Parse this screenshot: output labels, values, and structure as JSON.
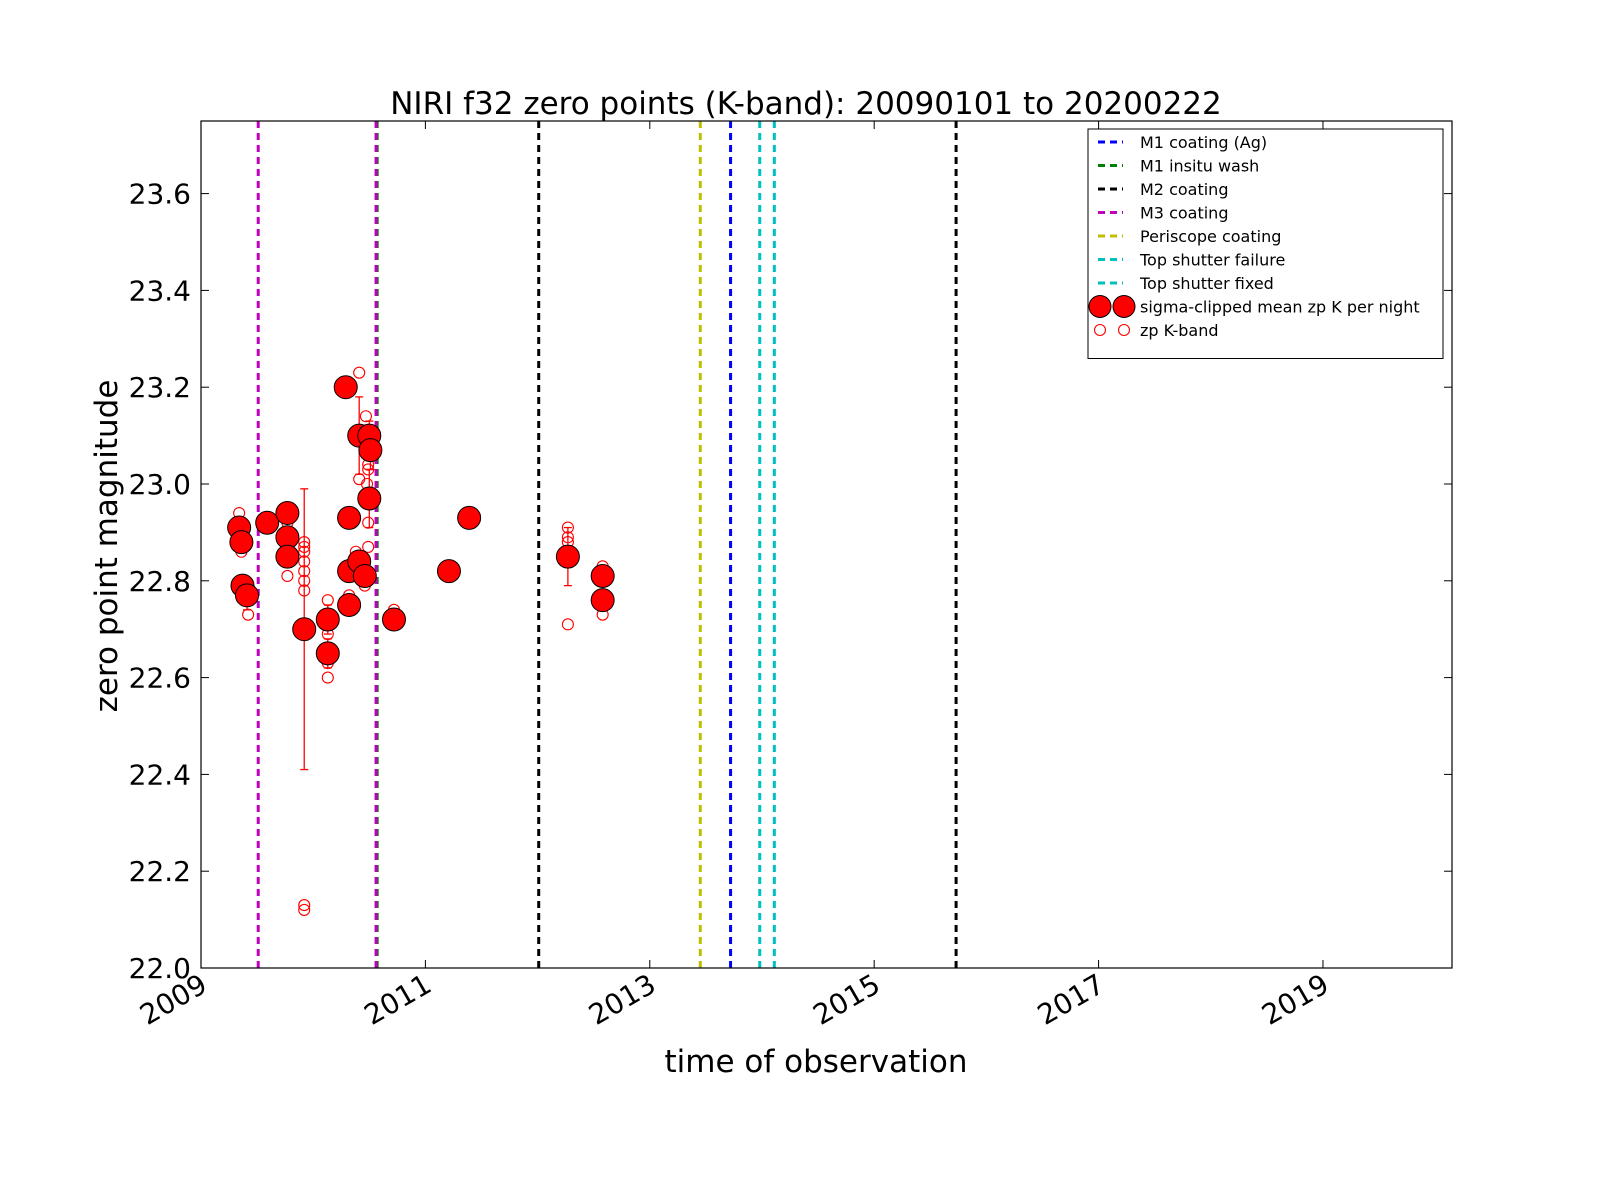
{
  "chart_data": {
    "type": "scatter",
    "title": "NIRI f32 zero points (K-band): 20090101 to 20200222",
    "xlabel": "time of observation",
    "ylabel": "zero point magnitude",
    "xlim": [
      2009.0,
      2020.15
    ],
    "ylim": [
      22.0,
      23.75
    ],
    "xticks": [
      2009,
      2011,
      2013,
      2015,
      2017,
      2019
    ],
    "xtick_labels": [
      "2009",
      "2011",
      "2013",
      "2015",
      "2017",
      "2019"
    ],
    "yticks": [
      22.0,
      22.2,
      22.4,
      22.6,
      22.8,
      23.0,
      23.2,
      23.4,
      23.6
    ],
    "ytick_labels": [
      "22.0",
      "22.2",
      "22.4",
      "22.6",
      "22.8",
      "23.0",
      "23.2",
      "23.4",
      "23.6"
    ],
    "grid": false,
    "legend_position": "top-right",
    "events": [
      {
        "name": "M1 coating (Ag)",
        "color": "#0000ff",
        "x": [
          2013.72
        ]
      },
      {
        "name": "M1 insitu wash",
        "color": "#008000",
        "x": [
          2010.57
        ]
      },
      {
        "name": "M2 coating",
        "color": "#000000",
        "x": [
          2012.01,
          2015.73
        ]
      },
      {
        "name": "M3 coating",
        "color": "#bf00bf",
        "x": [
          2009.51,
          2010.56
        ]
      },
      {
        "name": "Periscope coating",
        "color": "#bfbf00",
        "x": [
          2013.45
        ]
      },
      {
        "name": "Top shutter failure",
        "color": "#00bfbf",
        "x": [
          2013.98
        ]
      },
      {
        "name": "Top shutter fixed",
        "color": "#00bfbf",
        "x": [
          2014.11
        ]
      }
    ],
    "series": [
      {
        "name": "sigma-clipped mean zp K per night",
        "color": "#ff0000",
        "marker": "filled-circle",
        "points": [
          {
            "x": 2009.34,
            "y": 22.91,
            "err": 0.02
          },
          {
            "x": 2009.36,
            "y": 22.88,
            "err": 0.02
          },
          {
            "x": 2009.37,
            "y": 22.79,
            "err": 0.02
          },
          {
            "x": 2009.41,
            "y": 22.77,
            "err": 0.03
          },
          {
            "x": 2009.59,
            "y": 22.92,
            "err": 0.02
          },
          {
            "x": 2009.77,
            "y": 22.94,
            "err": 0.02
          },
          {
            "x": 2009.77,
            "y": 22.89,
            "err": 0.02
          },
          {
            "x": 2009.77,
            "y": 22.85,
            "err": 0.02
          },
          {
            "x": 2009.92,
            "y": 22.7,
            "err": 0.29
          },
          {
            "x": 2010.13,
            "y": 22.72,
            "err": 0.03
          },
          {
            "x": 2010.13,
            "y": 22.65,
            "err": 0.03
          },
          {
            "x": 2010.29,
            "y": 23.2,
            "err": 0.0
          },
          {
            "x": 2010.32,
            "y": 22.93,
            "err": 0.02
          },
          {
            "x": 2010.32,
            "y": 22.82,
            "err": 0.02
          },
          {
            "x": 2010.32,
            "y": 22.75,
            "err": 0.02
          },
          {
            "x": 2010.41,
            "y": 23.1,
            "err": 0.08
          },
          {
            "x": 2010.41,
            "y": 22.84,
            "err": 0.02
          },
          {
            "x": 2010.46,
            "y": 22.81,
            "err": 0.02
          },
          {
            "x": 2010.5,
            "y": 23.1,
            "err": 0.03
          },
          {
            "x": 2010.51,
            "y": 23.07,
            "err": 0.04
          },
          {
            "x": 2010.5,
            "y": 22.97,
            "err": 0.06
          },
          {
            "x": 2010.72,
            "y": 22.72,
            "err": 0.01
          },
          {
            "x": 2011.21,
            "y": 22.82,
            "err": 0.01
          },
          {
            "x": 2011.39,
            "y": 22.93,
            "err": 0.01
          },
          {
            "x": 2012.27,
            "y": 22.85,
            "err": 0.06
          },
          {
            "x": 2012.58,
            "y": 22.81,
            "err": 0.02
          },
          {
            "x": 2012.58,
            "y": 22.76,
            "err": 0.02
          }
        ]
      },
      {
        "name": "zp K-band",
        "color": "#ff0000",
        "marker": "open-circle",
        "points": [
          {
            "x": 2009.34,
            "y": 22.94
          },
          {
            "x": 2009.34,
            "y": 22.9
          },
          {
            "x": 2009.36,
            "y": 22.86
          },
          {
            "x": 2009.37,
            "y": 22.8
          },
          {
            "x": 2009.41,
            "y": 22.76
          },
          {
            "x": 2009.42,
            "y": 22.73
          },
          {
            "x": 2009.59,
            "y": 22.93
          },
          {
            "x": 2009.6,
            "y": 22.91
          },
          {
            "x": 2009.77,
            "y": 22.95
          },
          {
            "x": 2009.77,
            "y": 22.92
          },
          {
            "x": 2009.78,
            "y": 22.84
          },
          {
            "x": 2009.77,
            "y": 22.81
          },
          {
            "x": 2009.92,
            "y": 22.88
          },
          {
            "x": 2009.92,
            "y": 22.87
          },
          {
            "x": 2009.92,
            "y": 22.86
          },
          {
            "x": 2009.92,
            "y": 22.84
          },
          {
            "x": 2009.92,
            "y": 22.82
          },
          {
            "x": 2009.92,
            "y": 22.8
          },
          {
            "x": 2009.92,
            "y": 22.78
          },
          {
            "x": 2009.92,
            "y": 22.13
          },
          {
            "x": 2009.92,
            "y": 22.12
          },
          {
            "x": 2010.13,
            "y": 22.76
          },
          {
            "x": 2010.13,
            "y": 22.69
          },
          {
            "x": 2010.13,
            "y": 22.63
          },
          {
            "x": 2010.13,
            "y": 22.6
          },
          {
            "x": 2010.32,
            "y": 22.94
          },
          {
            "x": 2010.32,
            "y": 22.77
          },
          {
            "x": 2010.32,
            "y": 22.74
          },
          {
            "x": 2010.38,
            "y": 22.86
          },
          {
            "x": 2010.41,
            "y": 23.23
          },
          {
            "x": 2010.41,
            "y": 23.01
          },
          {
            "x": 2010.46,
            "y": 22.79
          },
          {
            "x": 2010.47,
            "y": 23.14
          },
          {
            "x": 2010.48,
            "y": 23.11
          },
          {
            "x": 2010.49,
            "y": 23.04
          },
          {
            "x": 2010.49,
            "y": 23.03
          },
          {
            "x": 2010.48,
            "y": 23.0
          },
          {
            "x": 2010.49,
            "y": 22.92
          },
          {
            "x": 2010.49,
            "y": 22.87
          },
          {
            "x": 2010.72,
            "y": 22.74
          },
          {
            "x": 2010.72,
            "y": 22.71
          },
          {
            "x": 2012.27,
            "y": 22.91
          },
          {
            "x": 2012.27,
            "y": 22.89
          },
          {
            "x": 2012.27,
            "y": 22.88
          },
          {
            "x": 2012.27,
            "y": 22.71
          },
          {
            "x": 2012.58,
            "y": 22.83
          },
          {
            "x": 2012.58,
            "y": 22.73
          }
        ]
      }
    ]
  }
}
